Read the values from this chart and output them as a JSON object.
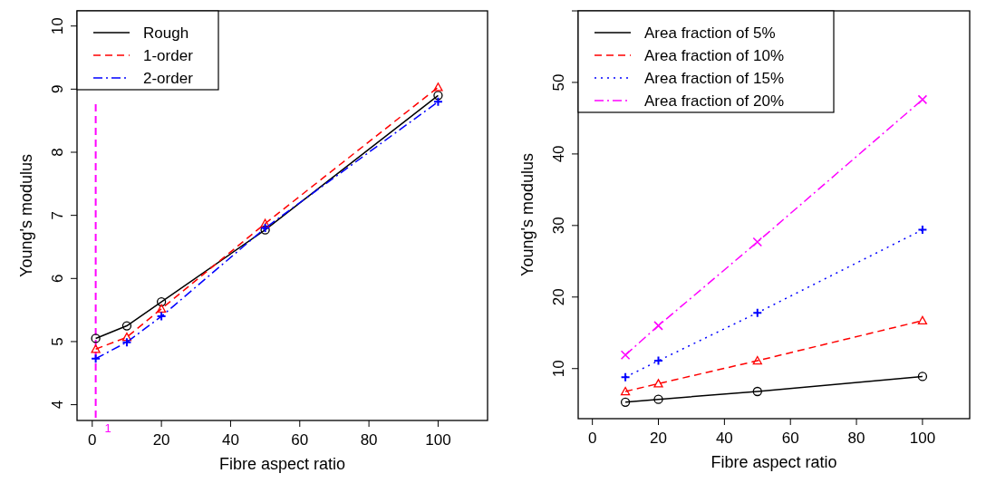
{
  "chart_data": [
    {
      "type": "line",
      "xlabel": "Fibre aspect ratio",
      "ylabel": "Young's modulus",
      "x": [
        1,
        10,
        20,
        50,
        100
      ],
      "xlim": [
        -4.4,
        114.3
      ],
      "xticks": [
        0,
        20,
        40,
        60,
        80,
        100
      ],
      "ylim": [
        3.75,
        10.24
      ],
      "yticks": [
        4,
        5,
        6,
        7,
        8,
        9,
        10
      ],
      "legend": "top left",
      "grid": false,
      "series": [
        {
          "name": "Rough",
          "color": "#000000",
          "line_style": "solid",
          "marker": "circle",
          "values": [
            5.05,
            5.25,
            5.63,
            6.77,
            8.9
          ]
        },
        {
          "name": "1-order",
          "color": "#ff0000",
          "line_style": "dashed",
          "marker": "triangle",
          "values": [
            4.88,
            5.07,
            5.52,
            6.87,
            9.03
          ]
        },
        {
          "name": "2-order",
          "color": "#0000ff",
          "line_style": "dashdot",
          "marker": "plus",
          "values": [
            4.73,
            4.99,
            5.4,
            6.8,
            8.8
          ]
        }
      ],
      "ref_lines": [
        {
          "axis": "x",
          "value": 1,
          "label": "1",
          "color": "#ff00ff",
          "line_style": "dashed"
        }
      ]
    },
    {
      "type": "line",
      "xlabel": "Fibre aspect ratio",
      "ylabel": "Young's modulus",
      "x": [
        10,
        20,
        50,
        100
      ],
      "xlim": [
        -4.3,
        114.3
      ],
      "xticks": [
        0,
        20,
        40,
        60,
        80,
        100
      ],
      "ylim": [
        3,
        60
      ],
      "yticks": [
        10,
        20,
        30,
        40,
        50,
        {
          "value": 60,
          "label": null
        }
      ],
      "legend": "top left",
      "grid": false,
      "series": [
        {
          "name": "Area fraction of 5%",
          "color": "#000000",
          "line_style": "solid",
          "marker": "circle",
          "values": [
            5.3,
            5.7,
            6.8,
            8.9
          ]
        },
        {
          "name": "Area fraction of 10%",
          "color": "#ff0000",
          "line_style": "dashed",
          "marker": "triangle",
          "values": [
            6.8,
            7.9,
            11.1,
            16.7
          ]
        },
        {
          "name": "Area fraction of 15%",
          "color": "#0000ff",
          "line_style": "dotted",
          "marker": "plus",
          "values": [
            8.8,
            11.1,
            17.8,
            29.4
          ]
        },
        {
          "name": "Area fraction of 20%",
          "color": "#ff00ff",
          "line_style": "dashdot",
          "marker": "cross",
          "values": [
            11.9,
            16.0,
            27.7,
            47.6
          ]
        }
      ]
    }
  ]
}
